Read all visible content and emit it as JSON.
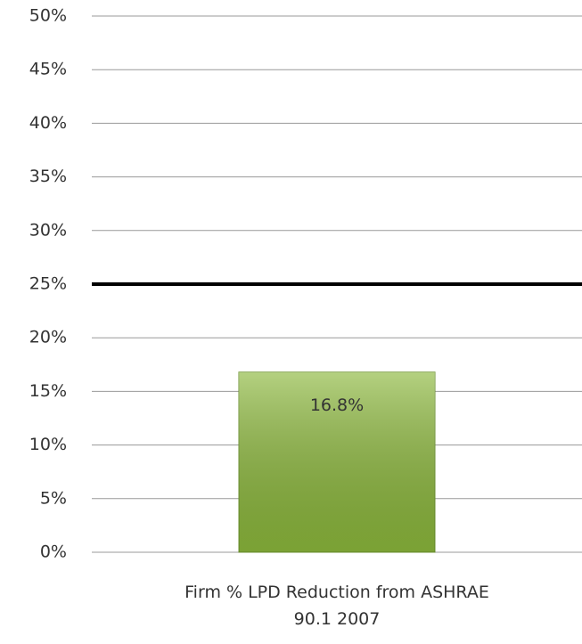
{
  "chart_data": {
    "type": "bar",
    "categories": [
      "Firm % LPD Reduction  from ASHRAE 90.1 2007"
    ],
    "values": [
      16.8
    ],
    "value_labels": [
      "16.8%"
    ],
    "color": "#8cb83c",
    "ylim": [
      0,
      50
    ],
    "yticks": [
      {
        "value": 0,
        "label": "0%"
      },
      {
        "value": 5,
        "label": "5%"
      },
      {
        "value": 10,
        "label": "10%"
      },
      {
        "value": 15,
        "label": "15%"
      },
      {
        "value": 20,
        "label": "20%"
      },
      {
        "value": 25,
        "label": "25%"
      },
      {
        "value": 30,
        "label": "30%"
      },
      {
        "value": 35,
        "label": "35%"
      },
      {
        "value": 40,
        "label": "40%"
      },
      {
        "value": 45,
        "label": "45%"
      },
      {
        "value": 50,
        "label": "50%"
      }
    ],
    "grid": true,
    "reference_line": {
      "value": 25,
      "color": "#000000"
    }
  }
}
